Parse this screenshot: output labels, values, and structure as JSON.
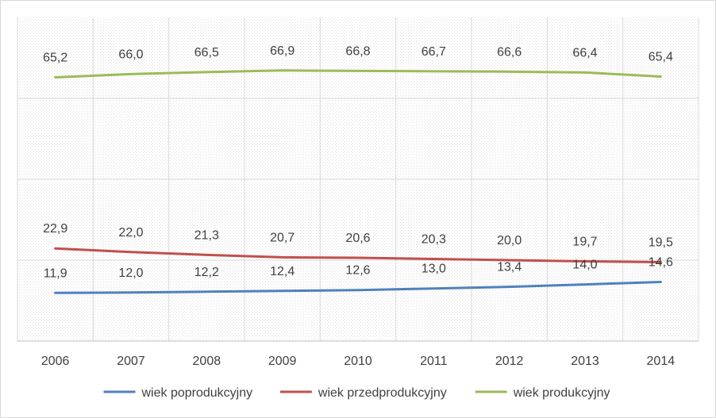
{
  "chart_data": {
    "type": "line",
    "title": "",
    "xlabel": "",
    "ylabel": "",
    "categories": [
      "2006",
      "2007",
      "2008",
      "2009",
      "2010",
      "2011",
      "2012",
      "2013",
      "2014"
    ],
    "series": [
      {
        "name": "wiek poprodukcyjny",
        "color": "#4f81bd",
        "values": [
          11.9,
          12.0,
          12.2,
          12.4,
          12.6,
          13.0,
          13.4,
          14.0,
          14.6
        ],
        "labels": [
          "11,9",
          "12,0",
          "12,2",
          "12,4",
          "12,6",
          "13,0",
          "13,4",
          "14,0",
          "14,6"
        ]
      },
      {
        "name": "wiek przedprodukcyjny",
        "color": "#c0504d",
        "values": [
          22.9,
          22.0,
          21.3,
          20.7,
          20.6,
          20.3,
          20.0,
          19.7,
          19.5
        ],
        "labels": [
          "22,9",
          "22,0",
          "21,3",
          "20,7",
          "20,6",
          "20,3",
          "20,0",
          "19,7",
          "19,5"
        ]
      },
      {
        "name": "wiek produkcyjny",
        "color": "#9bbb59",
        "values": [
          65.2,
          66.0,
          66.5,
          66.9,
          66.8,
          66.7,
          66.6,
          66.4,
          65.4
        ],
        "labels": [
          "65,2",
          "66,0",
          "66,5",
          "66,9",
          "66,8",
          "66,7",
          "66,6",
          "66,4",
          "65,4"
        ]
      }
    ],
    "ylim": [
      0,
      80
    ],
    "grid": true,
    "grid_style": "dashed-pattern",
    "legend_position": "bottom"
  }
}
